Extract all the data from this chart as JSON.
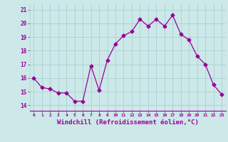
{
  "x": [
    0,
    1,
    2,
    3,
    4,
    5,
    6,
    7,
    8,
    9,
    10,
    11,
    12,
    13,
    14,
    15,
    16,
    17,
    18,
    19,
    20,
    21,
    22,
    23
  ],
  "y": [
    16.0,
    15.3,
    15.2,
    14.9,
    14.9,
    14.3,
    14.3,
    16.9,
    15.1,
    17.3,
    18.5,
    19.1,
    19.4,
    20.3,
    19.8,
    20.3,
    19.8,
    20.6,
    19.2,
    18.8,
    17.6,
    17.0,
    15.5,
    14.8
  ],
  "line_color": "#990099",
  "marker": "D",
  "markersize": 2.5,
  "linewidth": 0.9,
  "xlabel": "Windchill (Refroidissement éolien,°C)",
  "xlabel_fontsize": 6.5,
  "ylabel_ticks": [
    14,
    15,
    16,
    17,
    18,
    19,
    20,
    21
  ],
  "xtick_labels": [
    "0",
    "1",
    "2",
    "3",
    "4",
    "5",
    "6",
    "7",
    "8",
    "9",
    "10",
    "11",
    "12",
    "13",
    "14",
    "15",
    "16",
    "17",
    "18",
    "19",
    "20",
    "21",
    "22",
    "23"
  ],
  "ylim": [
    13.6,
    21.4
  ],
  "xlim": [
    -0.5,
    23.5
  ],
  "bg_color": "#cce8e8",
  "grid_color": "#b0d4d4",
  "tick_color": "#990099",
  "label_color": "#990099"
}
